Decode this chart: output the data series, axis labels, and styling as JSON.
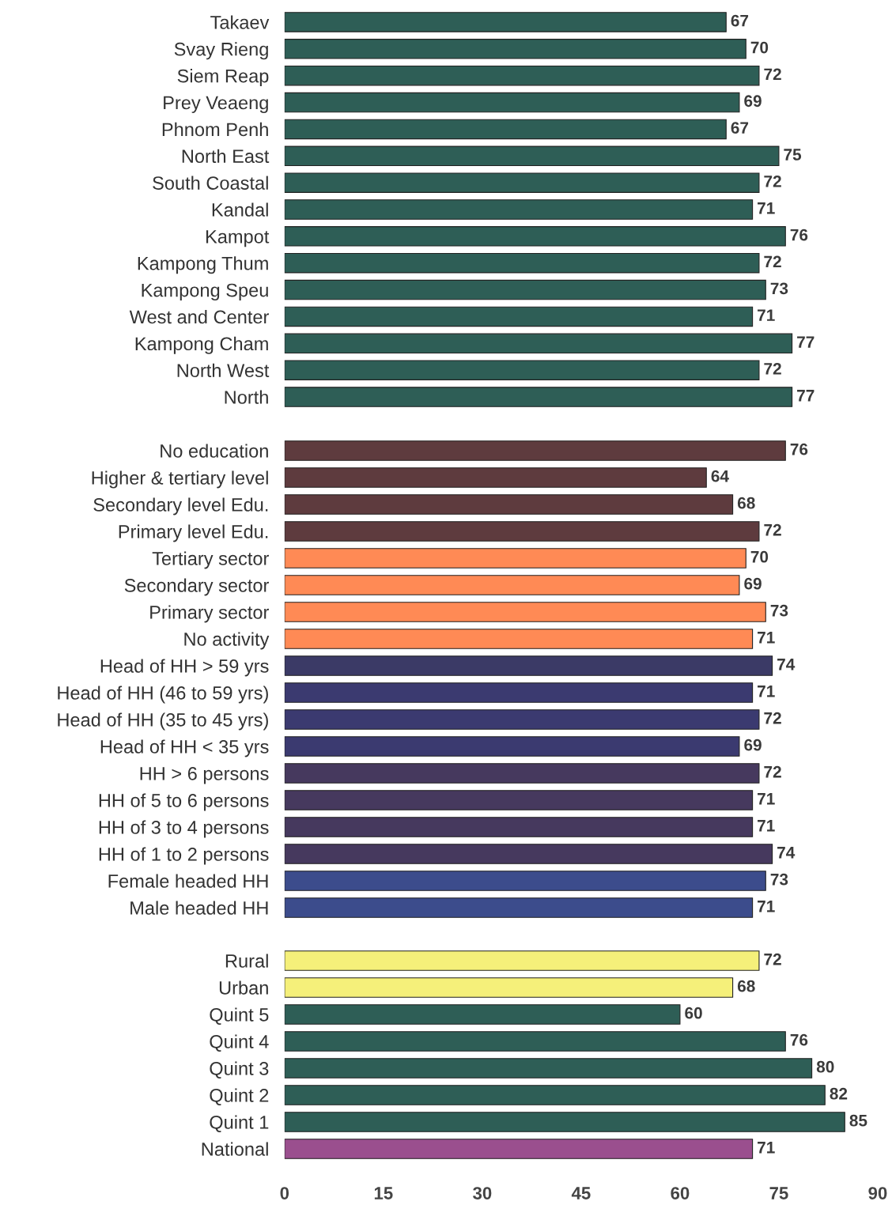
{
  "chart_data": [
    {
      "type": "bar",
      "orientation": "horizontal",
      "categories": [
        "Takaev",
        "Svay Rieng",
        "Siem Reap",
        "Prey Veaeng",
        "Phnom Penh",
        "North East",
        "South Coastal",
        "Kandal",
        "Kampot",
        "Kampong Thum",
        "Kampong Speu",
        "West and Center",
        "Kampong Cham",
        "North West",
        "North"
      ],
      "values": [
        67,
        70,
        72,
        69,
        67,
        75,
        72,
        71,
        76,
        72,
        73,
        71,
        77,
        72,
        77
      ],
      "colors": [
        "#2e5e56",
        "#2e5e56",
        "#2e5e56",
        "#2e5e56",
        "#2e5e56",
        "#2e5e56",
        "#2e5e56",
        "#2e5e56",
        "#2e5e56",
        "#2e5e56",
        "#2e5e56",
        "#2e5e56",
        "#2e5e56",
        "#2e5e56",
        "#2e5e56"
      ],
      "xlim": [
        0,
        90
      ],
      "data_labels": true,
      "tick_labels": "y",
      "grid": false
    },
    {
      "type": "bar",
      "orientation": "horizontal",
      "categories": [
        "No education",
        "Higher & tertiary level",
        "Secondary level Edu.",
        "Primary level Edu.",
        "Tertiary sector",
        "Secondary sector",
        "Primary sector",
        "No activity",
        "Head of HH > 59 yrs",
        "Head of HH (46 to 59 yrs)",
        "Head of HH (35 to 45 yrs)",
        "Head of HH < 35 yrs",
        "HH > 6 persons",
        "HH of 5 to 6 persons",
        "HH of 3 to 4 persons",
        "HH of 1 to 2 persons",
        "Female headed HH",
        "Male headed HH"
      ],
      "values": [
        76,
        64,
        68,
        72,
        70,
        69,
        73,
        71,
        74,
        71,
        72,
        69,
        72,
        71,
        71,
        74,
        73,
        71
      ],
      "colors": [
        "#5e3b3e",
        "#5e3b3e",
        "#5e3b3e",
        "#5e3b3e",
        "#ff8a55",
        "#ff8a55",
        "#ff8a55",
        "#ff8a55",
        "#3b3a66",
        "#3b3a70",
        "#3b3a70",
        "#3b3a70",
        "#46395e",
        "#46395e",
        "#46395e",
        "#46395e",
        "#3c4c8c",
        "#3c4c8c"
      ],
      "xlim": [
        0,
        90
      ],
      "data_labels": true,
      "tick_labels": "y",
      "grid": false
    },
    {
      "type": "bar",
      "orientation": "horizontal",
      "categories": [
        "Rural",
        "Urban",
        "Quint 5",
        "Quint 4",
        "Quint 3",
        "Quint 2",
        "Quint 1",
        "National"
      ],
      "values": [
        72,
        68,
        60,
        76,
        80,
        82,
        85,
        71
      ],
      "colors": [
        "#f5f07a",
        "#f5f07a",
        "#2e5e56",
        "#2e5e56",
        "#2e5e56",
        "#2e5e56",
        "#2e5e56",
        "#9a4f8e"
      ],
      "xlim": [
        0,
        90
      ],
      "xticks": [
        0,
        15,
        30,
        45,
        60,
        75,
        90
      ],
      "data_labels": true,
      "grid": false
    }
  ]
}
